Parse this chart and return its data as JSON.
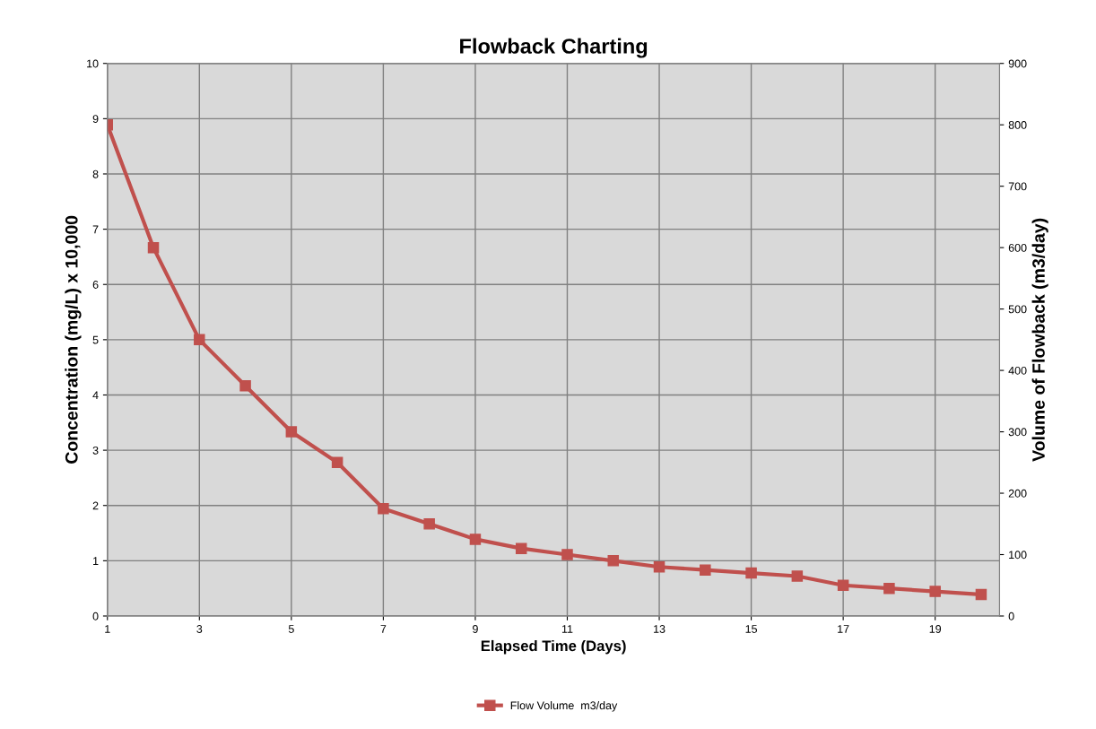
{
  "chart_data": {
    "type": "line",
    "title": "Flowback Charting",
    "xlabel": "Elapsed Time (Days)",
    "ylabel": "Concentration (mg/L) x 10,000",
    "y2label": "Volume of Flowback (m3/day)",
    "categories": [
      "1",
      null,
      "3",
      null,
      "5",
      null,
      "7",
      null,
      "9",
      null,
      "11",
      null,
      "13",
      null,
      "15",
      null,
      "17",
      null,
      "19",
      null
    ],
    "series": [
      {
        "name": "Flow Volume  m3/day",
        "color": "#c0504d",
        "axis": "y2",
        "values": [
          800,
          600,
          450,
          375,
          300,
          250,
          175,
          150,
          125,
          110,
          100,
          90,
          80,
          75,
          70,
          65,
          50,
          45,
          40,
          35
        ]
      }
    ],
    "ylim": [
      0,
      10
    ],
    "yticks": [
      0,
      1,
      2,
      3,
      4,
      5,
      6,
      7,
      8,
      9,
      10
    ],
    "y2lim": [
      0,
      900
    ],
    "y2ticks": [
      0,
      100,
      200,
      300,
      400,
      500,
      600,
      700,
      800,
      900
    ],
    "grid": true,
    "legend": "bottom",
    "marker": "square",
    "line_style": "solid"
  }
}
